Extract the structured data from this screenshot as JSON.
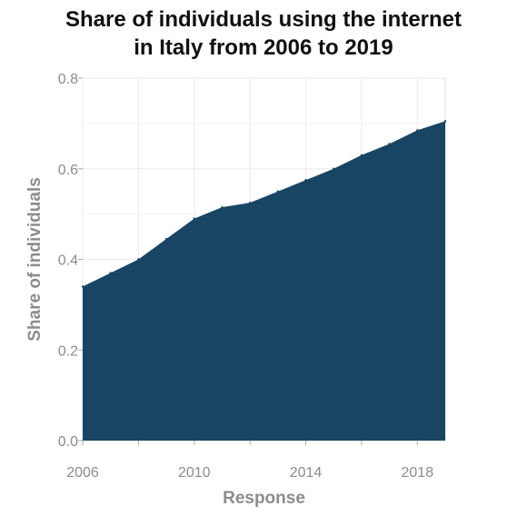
{
  "chart_data": {
    "type": "area",
    "title_line1": "Share of individuals using the internet",
    "title_line2": "in Italy from 2006 to 2019",
    "xlabel": "Response",
    "ylabel": "Share of individuals",
    "x": [
      2006,
      2007,
      2008,
      2009,
      2010,
      2011,
      2012,
      2013,
      2014,
      2015,
      2016,
      2017,
      2018,
      2019
    ],
    "series": [
      {
        "values": [
          0.34,
          0.37,
          0.4,
          0.445,
          0.49,
          0.515,
          0.525,
          0.55,
          0.575,
          0.6,
          0.63,
          0.655,
          0.685,
          0.705
        ]
      }
    ],
    "xlim": [
      2006,
      2019
    ],
    "ylim": [
      0.0,
      0.8
    ],
    "xticks": [
      2006,
      2010,
      2014,
      2018
    ],
    "xtick_labels": [
      "2006",
      "2010",
      "2014",
      "2018"
    ],
    "yticks": [
      0.0,
      0.2,
      0.4,
      0.6,
      0.8
    ],
    "ytick_labels": [
      "0.0",
      "0.2",
      "0.4",
      "0.6",
      "0.8"
    ],
    "grid": true,
    "fill_color": "#184563",
    "grid_color": "#ebebeb"
  }
}
